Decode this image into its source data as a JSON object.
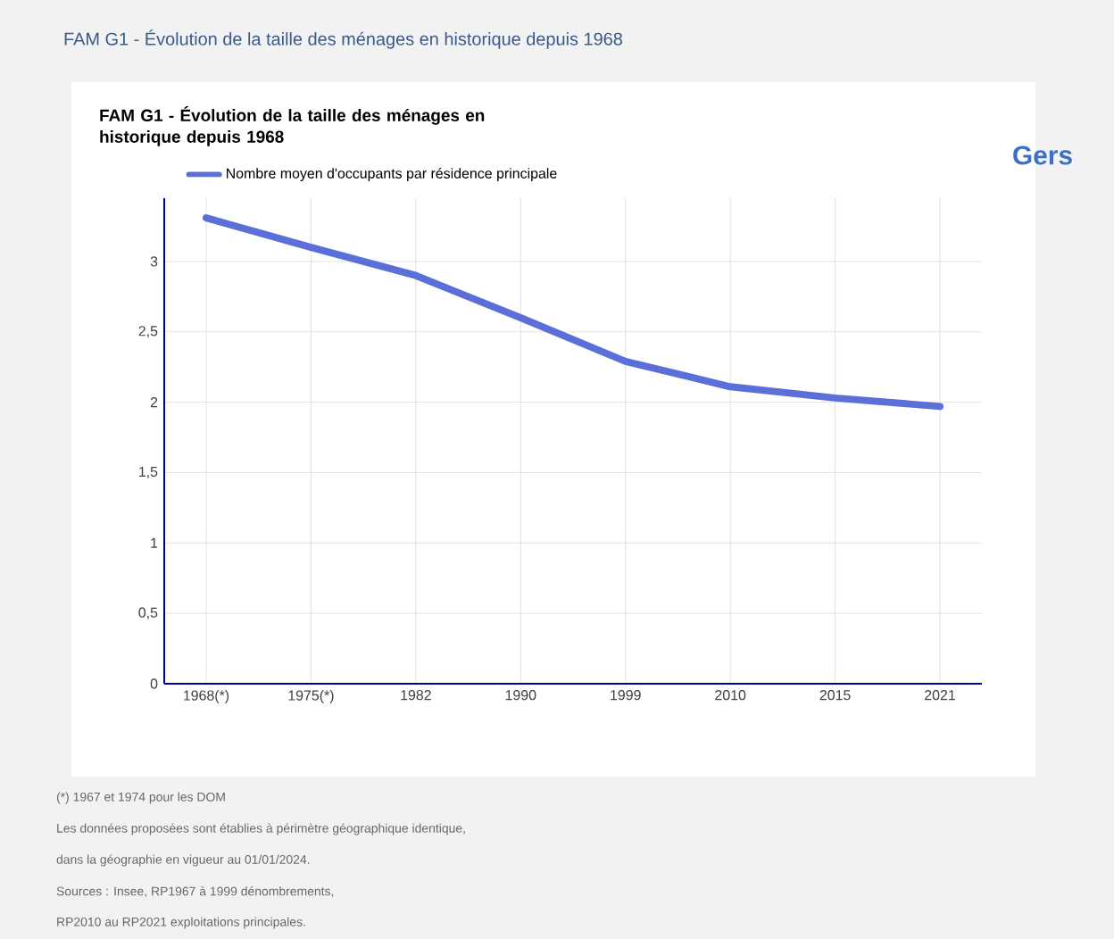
{
  "chart_data": {
    "type": "line",
    "title": "FAM G1 - Évolution de la taille des ménages en historique depuis 1968",
    "subtitle": "FAM G1 - Évolution de la taille des ménages en historique depuis 1968",
    "categories": [
      "1968(*)",
      "1975(*)",
      "1982",
      "1990",
      "1999",
      "2010",
      "2015",
      "2021"
    ],
    "series": [
      {
        "name": "Nombre moyen d'occupants par résidence principale",
        "color": "#5b6fd8",
        "values": [
          3.31,
          3.1,
          2.9,
          2.6,
          2.29,
          2.11,
          2.03,
          1.97
        ]
      }
    ],
    "ylim": [
      0,
      3.45
    ],
    "yticks": [
      0,
      {
        "value": 0.5,
        "label": "0,5"
      },
      1,
      {
        "value": 1.5,
        "label": "1,5"
      },
      2,
      {
        "value": 2.5,
        "label": "2,5"
      },
      3
    ],
    "grid": true,
    "legend": "top left",
    "marker": "none",
    "line_style": "solid",
    "annotations": [
      "Gers",
      "(*) 1967 et 1974 pour les DOM",
      "Les données proposées sont établies à périmètre géographique identique,",
      "dans la géographie en vigueur au 01/01/2024.",
      "Sources : Insee, RP1967 à 1999 dénombrements,",
      "RP2010 au RP2021 exploitations principales."
    ]
  }
}
